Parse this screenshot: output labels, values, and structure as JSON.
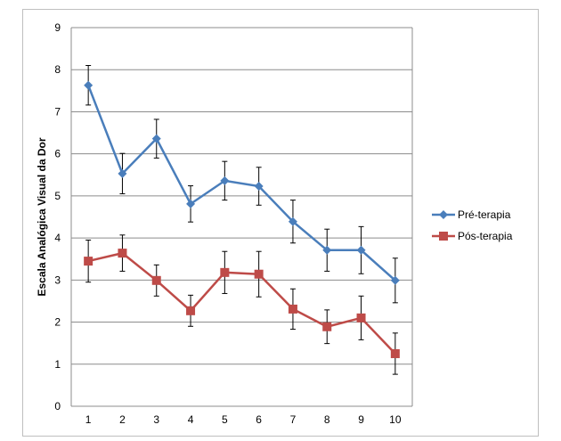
{
  "chart_data": {
    "type": "line",
    "title": "",
    "xlabel": "",
    "ylabel": "Escala  Analógica Visual da Dor",
    "x": [
      1,
      2,
      3,
      4,
      5,
      6,
      7,
      8,
      9,
      10
    ],
    "xticks": [
      "1",
      "2",
      "3",
      "4",
      "5",
      "6",
      "7",
      "8",
      "9",
      "10"
    ],
    "yticks": [
      "0",
      "1",
      "2",
      "3",
      "4",
      "5",
      "6",
      "7",
      "8",
      "9"
    ],
    "ylim": [
      0,
      9
    ],
    "grid": "horizontal",
    "legend_position": "right",
    "series": [
      {
        "name": "Pré-terapia",
        "color": "#4a7ebb",
        "marker": "diamond",
        "values": [
          7.63,
          5.53,
          6.36,
          4.81,
          5.36,
          5.23,
          4.39,
          3.71,
          3.71,
          2.99
        ],
        "error": [
          0.47,
          0.48,
          0.46,
          0.43,
          0.46,
          0.45,
          0.51,
          0.5,
          0.56,
          0.53
        ]
      },
      {
        "name": "Pós-terapia",
        "color": "#be4b48",
        "marker": "square",
        "values": [
          3.45,
          3.64,
          2.99,
          2.27,
          3.18,
          3.14,
          2.31,
          1.89,
          2.1,
          1.25
        ],
        "error": [
          0.5,
          0.43,
          0.37,
          0.37,
          0.5,
          0.54,
          0.48,
          0.4,
          0.52,
          0.49
        ]
      }
    ]
  }
}
